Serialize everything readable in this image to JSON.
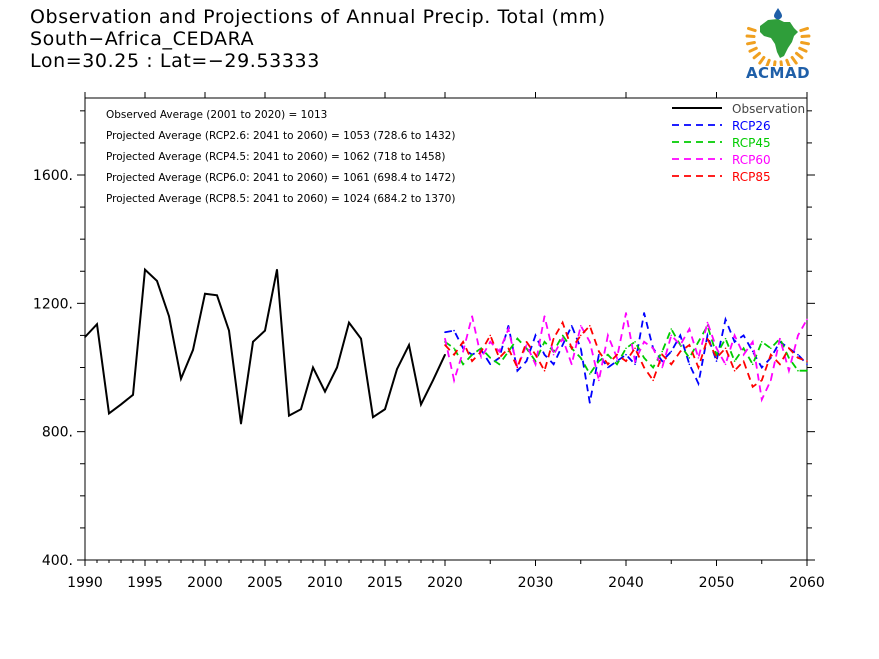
{
  "header": {
    "title": "Observation and Projections of Annual Precip. Total (mm)",
    "location": "South−Africa_CEDARA",
    "coords": "Lon=30.25 : Lat=−29.53333"
  },
  "logo": {
    "text": "ACMAD",
    "colors": {
      "africa": "#2f9e3a",
      "rays": "#f0a020",
      "drop": "#1f5fa8",
      "text": "#1f5fa8"
    }
  },
  "chart_data": {
    "type": "line",
    "title": "Observation and Projections of Annual Precip. Total (mm)",
    "xlim": [
      1990,
      2060
    ],
    "ylim": [
      400,
      1840
    ],
    "x_ticks": [
      1990,
      1995,
      2000,
      2005,
      2010,
      2015,
      2020,
      2030,
      2040,
      2050,
      2060
    ],
    "x_tick_labels": [
      "1990",
      "1995",
      "2000",
      "2005",
      "2010",
      "2015",
      "2020",
      "2030",
      "2040",
      "2050",
      "2060"
    ],
    "y_ticks": [
      400,
      800,
      1200,
      1600
    ],
    "y_tick_labels": [
      "400.",
      "800.",
      "1200.",
      "1600."
    ],
    "x_break": 2020,
    "legend_position": "top-right",
    "annotations": [
      "Observed Average (2001 to 2020) = 1013",
      "Projected Average (RCP2.6: 2041 to 2060) = 1053 (728.6 to 1432)",
      "Projected Average (RCP4.5: 2041 to 2060) = 1062 (718 to 1458)",
      "Projected Average (RCP6.0: 2041 to 2060) = 1061 (698.4 to 1472)",
      "Projected Average (RCP8.5: 2041 to 2060) = 1024 (684.2 to 1370)"
    ],
    "series": [
      {
        "name": "Observation",
        "color": "#000000",
        "style": "solid",
        "x": [
          1990,
          1991,
          1992,
          1993,
          1994,
          1995,
          1996,
          1997,
          1998,
          1999,
          2000,
          2001,
          2002,
          2003,
          2004,
          2005,
          2006,
          2007,
          2008,
          2009,
          2010,
          2011,
          2012,
          2013,
          2014,
          2015,
          2016,
          2017,
          2018,
          2019,
          2020
        ],
        "values": [
          1095,
          1135,
          857,
          885,
          915,
          1305,
          1270,
          1160,
          965,
          1055,
          1230,
          1225,
          1115,
          825,
          1080,
          1115,
          1305,
          850,
          870,
          1000,
          925,
          1000,
          1140,
          1090,
          845,
          870,
          995,
          1070,
          885,
          960,
          1040
        ]
      },
      {
        "name": "RCP26",
        "color": "#0000ff",
        "style": "dashed",
        "x": [
          2020,
          2021,
          2022,
          2023,
          2024,
          2025,
          2026,
          2027,
          2028,
          2029,
          2030,
          2031,
          2032,
          2033,
          2034,
          2035,
          2036,
          2037,
          2038,
          2039,
          2040,
          2041,
          2042,
          2043,
          2044,
          2045,
          2046,
          2047,
          2048,
          2049,
          2050,
          2051,
          2052,
          2053,
          2054,
          2055,
          2056,
          2057,
          2058,
          2059,
          2060
        ],
        "values": [
          1110,
          1115,
          1060,
          1040,
          1055,
          1010,
          1030,
          1130,
          990,
          1020,
          1100,
          1040,
          1010,
          1070,
          1130,
          1060,
          890,
          1040,
          1000,
          1020,
          1040,
          1010,
          1170,
          1060,
          1020,
          1050,
          1100,
          1010,
          950,
          1100,
          1020,
          1150,
          1080,
          1100,
          1050,
          1000,
          1030,
          1080,
          1060,
          1040,
          1010
        ]
      },
      {
        "name": "RCP45",
        "color": "#00cc00",
        "style": "dashed",
        "x": [
          2020,
          2021,
          2022,
          2023,
          2024,
          2025,
          2026,
          2027,
          2028,
          2029,
          2030,
          2031,
          2032,
          2033,
          2034,
          2035,
          2036,
          2037,
          2038,
          2039,
          2040,
          2041,
          2042,
          2043,
          2044,
          2045,
          2046,
          2047,
          2048,
          2049,
          2050,
          2051,
          2052,
          2053,
          2054,
          2055,
          2056,
          2057,
          2058,
          2059,
          2060
        ],
        "values": [
          1080,
          1060,
          1010,
          1040,
          1060,
          1030,
          1010,
          1050,
          1090,
          1060,
          1020,
          1080,
          1050,
          1100,
          1060,
          1030,
          980,
          1020,
          1040,
          1010,
          1060,
          1080,
          1030,
          1000,
          1050,
          1120,
          1070,
          1030,
          1080,
          1130,
          1040,
          1090,
          1020,
          1060,
          1010,
          1080,
          1060,
          1090,
          1030,
          990,
          990
        ]
      },
      {
        "name": "RCP60",
        "color": "#ff00ff",
        "style": "dashed",
        "x": [
          2020,
          2021,
          2022,
          2023,
          2024,
          2025,
          2026,
          2027,
          2028,
          2029,
          2030,
          2031,
          2032,
          2033,
          2034,
          2035,
          2036,
          2037,
          2038,
          2039,
          2040,
          2041,
          2042,
          2043,
          2044,
          2045,
          2046,
          2047,
          2048,
          2049,
          2050,
          2051,
          2052,
          2053,
          2054,
          2055,
          2056,
          2057,
          2058,
          2059,
          2060
        ],
        "values": [
          1090,
          960,
          1050,
          1160,
          1030,
          1080,
          1050,
          1120,
          1000,
          1070,
          1010,
          1160,
          1040,
          1090,
          1010,
          1130,
          1080,
          960,
          1100,
          1030,
          1170,
          1020,
          1080,
          1060,
          1000,
          1100,
          1070,
          1120,
          1030,
          1140,
          1060,
          1010,
          1100,
          1040,
          1080,
          900,
          960,
          1090,
          990,
          1100,
          1150
        ]
      },
      {
        "name": "RCP85",
        "color": "#ff0000",
        "style": "dashed",
        "x": [
          2020,
          2021,
          2022,
          2023,
          2024,
          2025,
          2026,
          2027,
          2028,
          2029,
          2030,
          2031,
          2032,
          2033,
          2034,
          2035,
          2036,
          2037,
          2038,
          2039,
          2040,
          2041,
          2042,
          2043,
          2044,
          2045,
          2046,
          2047,
          2048,
          2049,
          2050,
          2051,
          2052,
          2053,
          2054,
          2055,
          2056,
          2057,
          2058,
          2059,
          2060
        ],
        "values": [
          1070,
          1040,
          1080,
          1020,
          1050,
          1100,
          1030,
          1060,
          1000,
          1080,
          1040,
          990,
          1090,
          1140,
          1060,
          1100,
          1130,
          1050,
          1010,
          1040,
          1020,
          1060,
          1000,
          960,
          1040,
          1010,
          1050,
          1070,
          1000,
          1090,
          1030,
          1060,
          990,
          1020,
          940,
          960,
          1040,
          1010,
          1060,
          1030,
          1020
        ]
      }
    ]
  }
}
